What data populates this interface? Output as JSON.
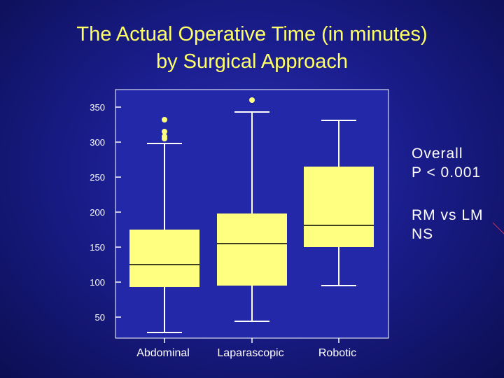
{
  "title_lines": [
    "The Actual Operative Time (in minutes)",
    "by Surgical Approach"
  ],
  "annotations": {
    "overall_line1": "Overall",
    "overall_line2": "P < 0.001",
    "rm_line1": "RM vs LM",
    "rm_line2": "NS"
  },
  "colors": {
    "box_fill": "#ffff80",
    "plot_bg": "#2228a8",
    "title_text": "#ffff66",
    "axis": "#ffffff"
  },
  "chart_data": {
    "type": "boxplot",
    "title": "The Actual Operative Time (in minutes) by Surgical Approach",
    "xlabel": "",
    "ylabel": "",
    "ylim": [
      20,
      375
    ],
    "yticks": [
      50,
      100,
      150,
      200,
      250,
      300,
      350
    ],
    "categories": [
      "Abdominal",
      "Laparascopic",
      "Robotic"
    ],
    "boxes": [
      {
        "category": "Abdominal",
        "whisker_low": 28,
        "q1": 93,
        "median": 125,
        "q3": 175,
        "whisker_high": 298,
        "outliers": [
          305,
          308,
          315,
          332
        ]
      },
      {
        "category": "Laparascopic",
        "whisker_low": 44,
        "q1": 95,
        "median": 155,
        "q3": 198,
        "whisker_high": 343,
        "outliers": [
          360
        ]
      },
      {
        "category": "Robotic",
        "whisker_low": 95,
        "q1": 150,
        "median": 181,
        "q3": 265,
        "whisker_high": 331,
        "outliers": []
      }
    ],
    "grid": false,
    "legend": "none"
  }
}
